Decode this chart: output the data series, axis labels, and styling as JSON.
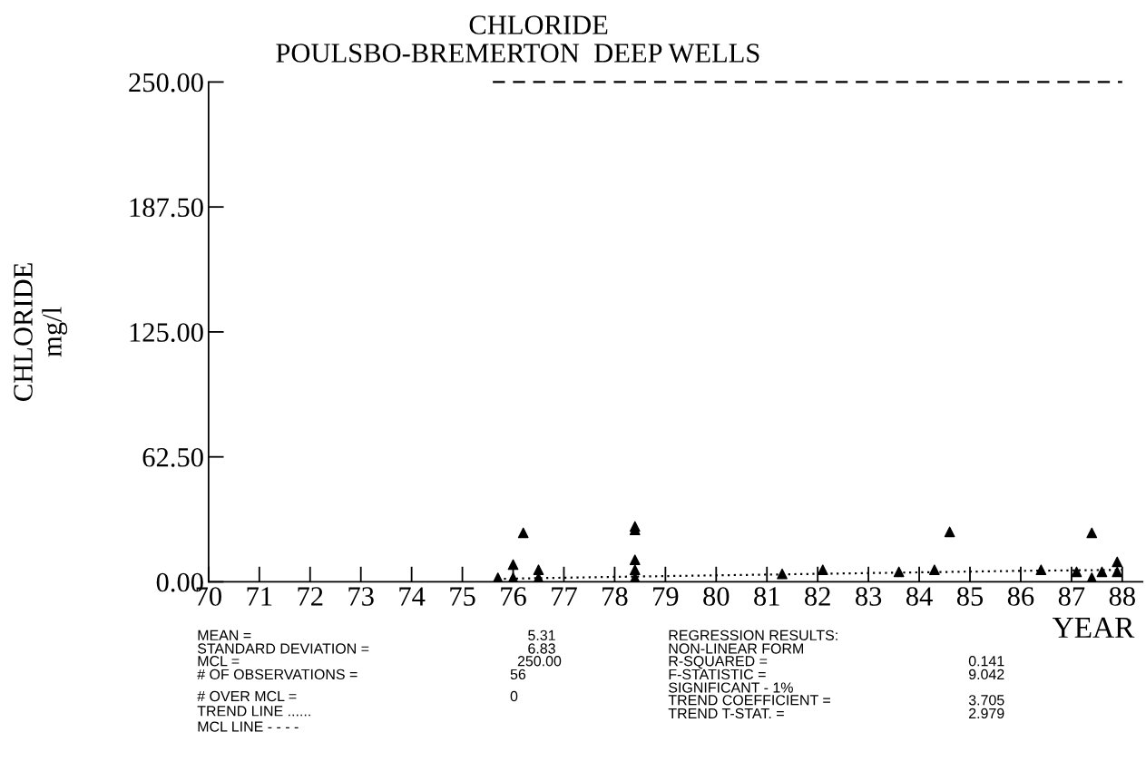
{
  "chart_data": {
    "type": "scatter",
    "title": "CHLORIDE",
    "subtitle": "POULSBO-BREMERTON  DEEP WELLS",
    "xlabel": "YEAR",
    "ylabel": "CHLORIDE\nmg/l",
    "xlim": [
      70,
      88.4
    ],
    "xticks": [
      70,
      71,
      72,
      73,
      74,
      75,
      76,
      77,
      78,
      79,
      80,
      81,
      82,
      83,
      84,
      85,
      86,
      87,
      88
    ],
    "ylim": [
      0,
      250
    ],
    "yticks": [
      {
        "value": 0,
        "label": "0.00"
      },
      {
        "value": 62.5,
        "label": "62.50"
      },
      {
        "value": 125,
        "label": "125.00"
      },
      {
        "value": 187.5,
        "label": "187.50"
      },
      {
        "value": 250,
        "label": "250.00"
      }
    ],
    "grid": false,
    "legend": false,
    "series": [
      {
        "marker": "triangle",
        "color": "#000000",
        "x": [
          75.7,
          76.0,
          76.0,
          76.2,
          76.5,
          76.5,
          78.4,
          78.4,
          78.4,
          78.4,
          78.4,
          81.3,
          82.1,
          83.6,
          84.3,
          84.6,
          86.4,
          87.1,
          87.4,
          87.4,
          87.6,
          87.9,
          87.9
        ],
        "values": [
          2,
          8.6,
          2,
          24.5,
          6,
          2,
          27.7,
          26,
          11,
          6,
          2,
          4,
          6,
          5,
          6,
          25,
          6,
          5,
          24.5,
          2,
          5,
          5,
          10
        ]
      },
      {
        "type": "line",
        "line_style": "dotted",
        "marker": "none",
        "color": "#000000",
        "x": [
          75.7,
          78,
          82,
          86,
          88
        ],
        "values": [
          1.5,
          2.5,
          4,
          5.5,
          6
        ]
      },
      {
        "type": "line",
        "line_style": "dashed",
        "marker": "none",
        "color": "#000000",
        "x": [
          75.6,
          88
        ],
        "values": [
          250,
          250
        ]
      }
    ],
    "annotations": [
      "MEAN =",
      "5.31",
      "STANDARD DEVIATION =",
      "6.83",
      "MCL =",
      "250.00",
      "# OF OBSERVATIONS =",
      "56",
      "# OVER MCL =",
      "0",
      "TREND LINE ......",
      "MCL LINE - - - -",
      "REGRESSION RESULTS:",
      "NON-LINEAR FORM",
      "R-SQUARED =",
      "0.141",
      "F-STATISTIC =",
      "9.042",
      "SIGNIFICANT - 1%",
      "TREND COEFFICIENT =",
      "3.705",
      "TREND T-STAT. =",
      "2.979"
    ]
  }
}
